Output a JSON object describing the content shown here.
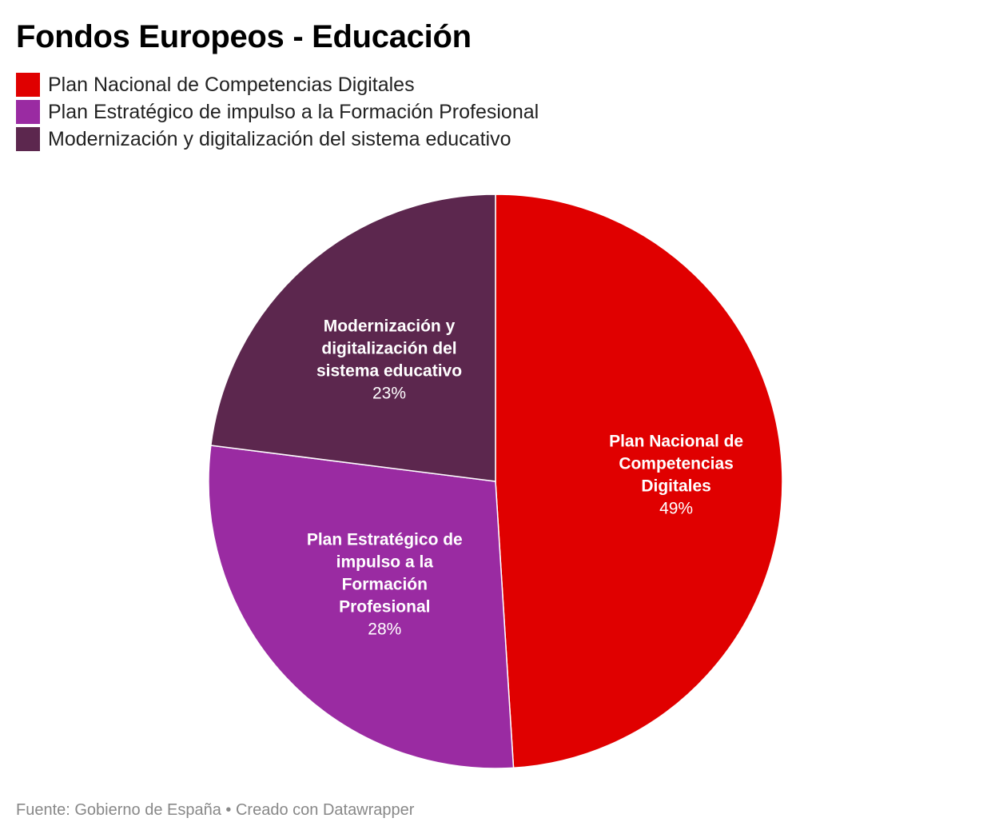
{
  "title": "Fondos Europeos - Educación",
  "footer": {
    "source": "Fuente: Gobierno de España",
    "separator": " • ",
    "credit": "Creado con Datawrapper"
  },
  "chart_data": {
    "type": "pie",
    "title": "Fondos Europeos - Educación",
    "legend": "top-left",
    "slices": [
      {
        "label": "Plan Nacional de Competencias Digitales",
        "label_lines": [
          "Plan Nacional de",
          "Competencias",
          "Digitales"
        ],
        "value": 49,
        "value_label": "49%",
        "color": "#e00000"
      },
      {
        "label": "Plan Estratégico de impulso a la Formación Profesional",
        "label_lines": [
          "Plan Estratégico de",
          "impulso a la",
          "Formación",
          "Profesional"
        ],
        "value": 28,
        "value_label": "28%",
        "color": "#9a2ba2"
      },
      {
        "label": "Modernización y digitalización del sistema educativo",
        "label_lines": [
          "Modernización y",
          "digitalización del",
          "sistema educativo"
        ],
        "value": 23,
        "value_label": "23%",
        "color": "#5c274e"
      }
    ]
  }
}
